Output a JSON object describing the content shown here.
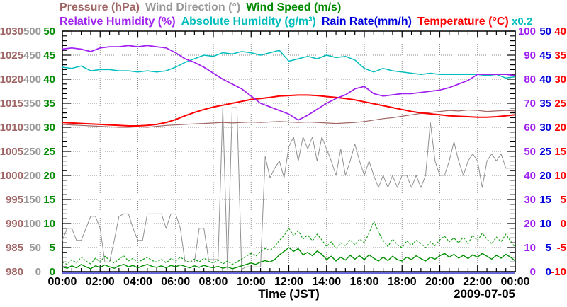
{
  "legend": {
    "row1": [
      {
        "label": "Pressure (hPa)",
        "color": "#a06565"
      },
      {
        "label": "Wind Direction (°)",
        "color": "#999999"
      },
      {
        "label": "Wind Speed (m/s)",
        "color": "#008a00"
      }
    ],
    "row2": [
      {
        "label": "Relative Humidity (%)",
        "color": "#a020f0"
      },
      {
        "label": "Absolute Humidity (g/m³)",
        "color": "#00bdbd"
      },
      {
        "label": "Rain Rate(mm/h)",
        "color": "#0000dd"
      },
      {
        "label": "Temperature (°C)",
        "color": "#ff0000"
      }
    ],
    "scale_note": {
      "text": "x0.2",
      "color": "#00bdbd"
    }
  },
  "footer": {
    "xlabel": "Time (JST)",
    "date": "2009-07-05"
  },
  "chart_data": {
    "type": "line",
    "title": "",
    "xlabel": "Time (JST)",
    "date_label": "2009-07-05",
    "grid": true,
    "x_axis": {
      "ticks": [
        "00:00",
        "02:00",
        "04:00",
        "06:00",
        "08:00",
        "10:00",
        "12:00",
        "14:00",
        "16:00",
        "18:00",
        "20:00",
        "22:00",
        "00:00"
      ],
      "range_hours": [
        0,
        24
      ],
      "minor_tick_hours": 0.5
    },
    "axes_left": [
      {
        "id": "pressure",
        "unit": "hPa",
        "color": "#a06565",
        "min": 980,
        "max": 1030,
        "tick_step": 5
      },
      {
        "id": "wind_direction",
        "unit": "°",
        "color": "#999999",
        "min": 0,
        "max": 500,
        "tick_step": 50
      },
      {
        "id": "wind_speed",
        "unit": "m/s",
        "color": "#008a00",
        "min": 0,
        "max": 50,
        "tick_step": 5
      }
    ],
    "axes_right": [
      {
        "id": "relative_humidity",
        "unit": "%",
        "color": "#a020f0",
        "min": 0,
        "max": 100,
        "tick_step": 10
      },
      {
        "id": "rain_rate",
        "unit": "mm/h",
        "color": "#0000dd",
        "min": 0,
        "max": 50,
        "tick_step": 5
      },
      {
        "id": "temperature",
        "unit": "°C",
        "color": "#ff0000",
        "min": -10,
        "max": 40,
        "tick_step": 5
      }
    ],
    "absolute_humidity_scale_note": "x0.2",
    "series": [
      {
        "id": "wind_direction",
        "color": "#909090",
        "width": 1,
        "x_start": 0,
        "x_step": 0.25,
        "ymin": 0,
        "ymax": 500,
        "values": [
          65,
          90,
          90,
          65,
          65,
          90,
          115,
          115,
          90,
          20,
          20,
          65,
          115,
          120,
          120,
          90,
          65,
          65,
          120,
          120,
          120,
          120,
          90,
          120,
          120,
          90,
          20,
          20,
          20,
          90,
          90,
          25,
          25,
          25,
          341,
          5,
          341,
          341,
          5,
          10,
          10,
          10,
          10,
          240,
          195,
          215,
          230,
          195,
          260,
          280,
          230,
          280,
          255,
          280,
          230,
          280,
          255,
          230,
          200,
          255,
          200,
          230,
          265,
          230,
          200,
          230,
          200,
          175,
          200,
          175,
          200,
          175,
          200,
          200,
          175,
          200,
          175,
          200,
          310,
          230,
          200,
          200,
          230,
          270,
          230,
          200,
          230,
          245,
          230,
          175,
          230,
          245,
          230,
          245,
          215,
          215,
          215
        ]
      },
      {
        "id": "wind_speed_max",
        "color": "#16a016",
        "width": 1.2,
        "dash": "3 2",
        "x_start": 0,
        "x_step": 0.25,
        "ymin": 0,
        "ymax": 50,
        "values": [
          2.0,
          1.5,
          2.5,
          1.8,
          3.0,
          2.2,
          1.6,
          2.8,
          2.0,
          3.2,
          2.4,
          1.8,
          2.6,
          3.3,
          2.2,
          2.8,
          1.9,
          2.5,
          3.0,
          2.3,
          2.0,
          2.6,
          1.8,
          2.7,
          2.2,
          3.0,
          2.4,
          1.9,
          2.6,
          2.0,
          2.8,
          2.2,
          1.8,
          2.4,
          1.6,
          2.2,
          1.5,
          2.0,
          2.6,
          3.2,
          3.8,
          3.2,
          4.2,
          4.8,
          4.4,
          5.2,
          6.5,
          7.5,
          9.0,
          7.5,
          8.5,
          6.8,
          7.6,
          6.4,
          7.8,
          6.6,
          5.2,
          6.2,
          4.8,
          6.0,
          5.4,
          6.6,
          5.6,
          6.8,
          6.0,
          8.0,
          10.5,
          8.2,
          6.5,
          5.2,
          6.8,
          5.6,
          5.0,
          6.4,
          5.4,
          6.6,
          5.8,
          5.0,
          6.2,
          5.4,
          6.6,
          7.4,
          6.2,
          7.0,
          6.0,
          7.2,
          5.8,
          7.6,
          6.4,
          8.0,
          6.8,
          5.8,
          7.2,
          6.2,
          7.8,
          6.4,
          5.0
        ]
      },
      {
        "id": "wind_speed_avg",
        "color": "#008f00",
        "width": 1.4,
        "x_start": 0,
        "x_step": 0.25,
        "ymin": 0,
        "ymax": 50,
        "values": [
          1.0,
          0.7,
          1.2,
          0.8,
          1.5,
          1.0,
          0.6,
          1.2,
          0.9,
          1.4,
          1.0,
          0.7,
          1.2,
          1.5,
          1.0,
          1.3,
          0.8,
          1.2,
          1.5,
          1.1,
          0.9,
          1.2,
          0.8,
          1.3,
          1.0,
          1.4,
          1.1,
          0.8,
          1.2,
          0.9,
          1.3,
          1.0,
          0.8,
          1.1,
          0.7,
          1.0,
          0.6,
          0.9,
          1.2,
          1.5,
          1.8,
          1.5,
          2.0,
          2.3,
          2.0,
          2.5,
          3.5,
          4.2,
          5.0,
          4.2,
          4.8,
          3.5,
          4.0,
          3.3,
          4.3,
          3.6,
          2.5,
          3.2,
          2.2,
          3.0,
          2.4,
          3.4,
          2.6,
          3.3,
          2.5,
          3.5,
          2.8,
          2.2,
          3.0,
          2.3,
          3.2,
          2.5,
          2.2,
          3.0,
          2.5,
          3.3,
          2.7,
          2.2,
          3.0,
          2.6,
          3.3,
          3.8,
          3.0,
          3.6,
          2.8,
          3.4,
          2.7,
          3.5,
          3.0,
          3.8,
          3.2,
          2.6,
          3.4,
          2.8,
          3.6,
          3.0,
          2.2
        ]
      },
      {
        "id": "pressure",
        "color": "#a06565",
        "width": 1.2,
        "x_start": 0,
        "x_step": 0.5,
        "ymin": 980,
        "ymax": 1030,
        "values": [
          1010.6,
          1010.5,
          1010.4,
          1010.3,
          1010.2,
          1010.1,
          1010.0,
          1010.0,
          1010.1,
          1010.0,
          1010.2,
          1010.4,
          1010.5,
          1010.6,
          1010.7,
          1010.8,
          1010.9,
          1011.0,
          1010.9,
          1011.0,
          1011.1,
          1011.0,
          1011.1,
          1011.2,
          1011.1,
          1011.0,
          1011.1,
          1011.0,
          1010.9,
          1010.8,
          1010.9,
          1011.0,
          1011.2,
          1011.5,
          1011.8,
          1012.0,
          1012.3,
          1012.6,
          1012.9,
          1013.1,
          1013.3,
          1013.5,
          1013.4,
          1013.6,
          1013.5,
          1013.3,
          1013.4,
          1013.5,
          1013.4
        ]
      },
      {
        "id": "rain_rate",
        "color": "#3333cc",
        "width": 1.6,
        "x_start": 0,
        "x_step": 24,
        "ymin": 0,
        "ymax": 50,
        "values": [
          0,
          0
        ]
      },
      {
        "id": "temperature",
        "color": "#ff0000",
        "width": 2,
        "x_start": 0,
        "x_step": 0.5,
        "ymin": -10,
        "ymax": 40,
        "values": [
          21.0,
          20.9,
          20.8,
          20.7,
          20.6,
          20.5,
          20.4,
          20.3,
          20.3,
          20.4,
          20.6,
          21.0,
          21.6,
          22.4,
          23.1,
          23.7,
          24.2,
          24.6,
          25.0,
          25.4,
          25.8,
          26.0,
          26.2,
          26.5,
          26.6,
          26.7,
          26.7,
          26.6,
          26.4,
          26.2,
          26.0,
          25.7,
          25.3,
          24.9,
          24.5,
          24.1,
          23.7,
          23.3,
          23.0,
          22.8,
          22.6,
          22.4,
          22.3,
          22.2,
          22.1,
          22.1,
          22.2,
          22.4,
          22.6
        ]
      },
      {
        "id": "absolute_humidity",
        "color": "#00bdbd",
        "width": 1.5,
        "x_start": 0,
        "x_step": 0.5,
        "ymin": 0,
        "ymax": 20,
        "values": [
          17.0,
          16.9,
          17.1,
          16.7,
          16.8,
          16.8,
          16.7,
          16.7,
          16.6,
          16.7,
          16.6,
          16.7,
          17.0,
          17.4,
          17.7,
          18.0,
          17.9,
          18.2,
          18.1,
          18.3,
          18.2,
          18.0,
          18.2,
          18.4,
          17.5,
          17.7,
          17.9,
          17.7,
          18.0,
          17.8,
          17.9,
          17.6,
          16.9,
          16.6,
          16.9,
          16.7,
          16.6,
          16.5,
          16.4,
          16.5,
          16.4,
          16.4,
          16.4,
          16.4,
          16.4,
          16.3,
          16.4,
          16.1,
          16.2
        ]
      },
      {
        "id": "relative_humidity",
        "color": "#a020f0",
        "width": 1.7,
        "x_start": 0,
        "x_step": 0.5,
        "ymin": 0,
        "ymax": 100,
        "values": [
          92.5,
          93,
          92.5,
          91.5,
          93,
          93.5,
          93.5,
          94,
          93.5,
          94,
          93.5,
          93,
          91,
          88.5,
          87,
          85,
          82.5,
          80,
          78,
          76,
          73,
          70,
          68.5,
          67,
          65.5,
          63,
          65,
          67.5,
          70,
          72,
          73.5,
          76,
          77,
          74,
          73,
          73.5,
          74,
          74,
          74.5,
          75,
          75.5,
          76.5,
          78,
          79.5,
          82,
          82,
          82,
          82,
          81.5
        ]
      }
    ]
  }
}
